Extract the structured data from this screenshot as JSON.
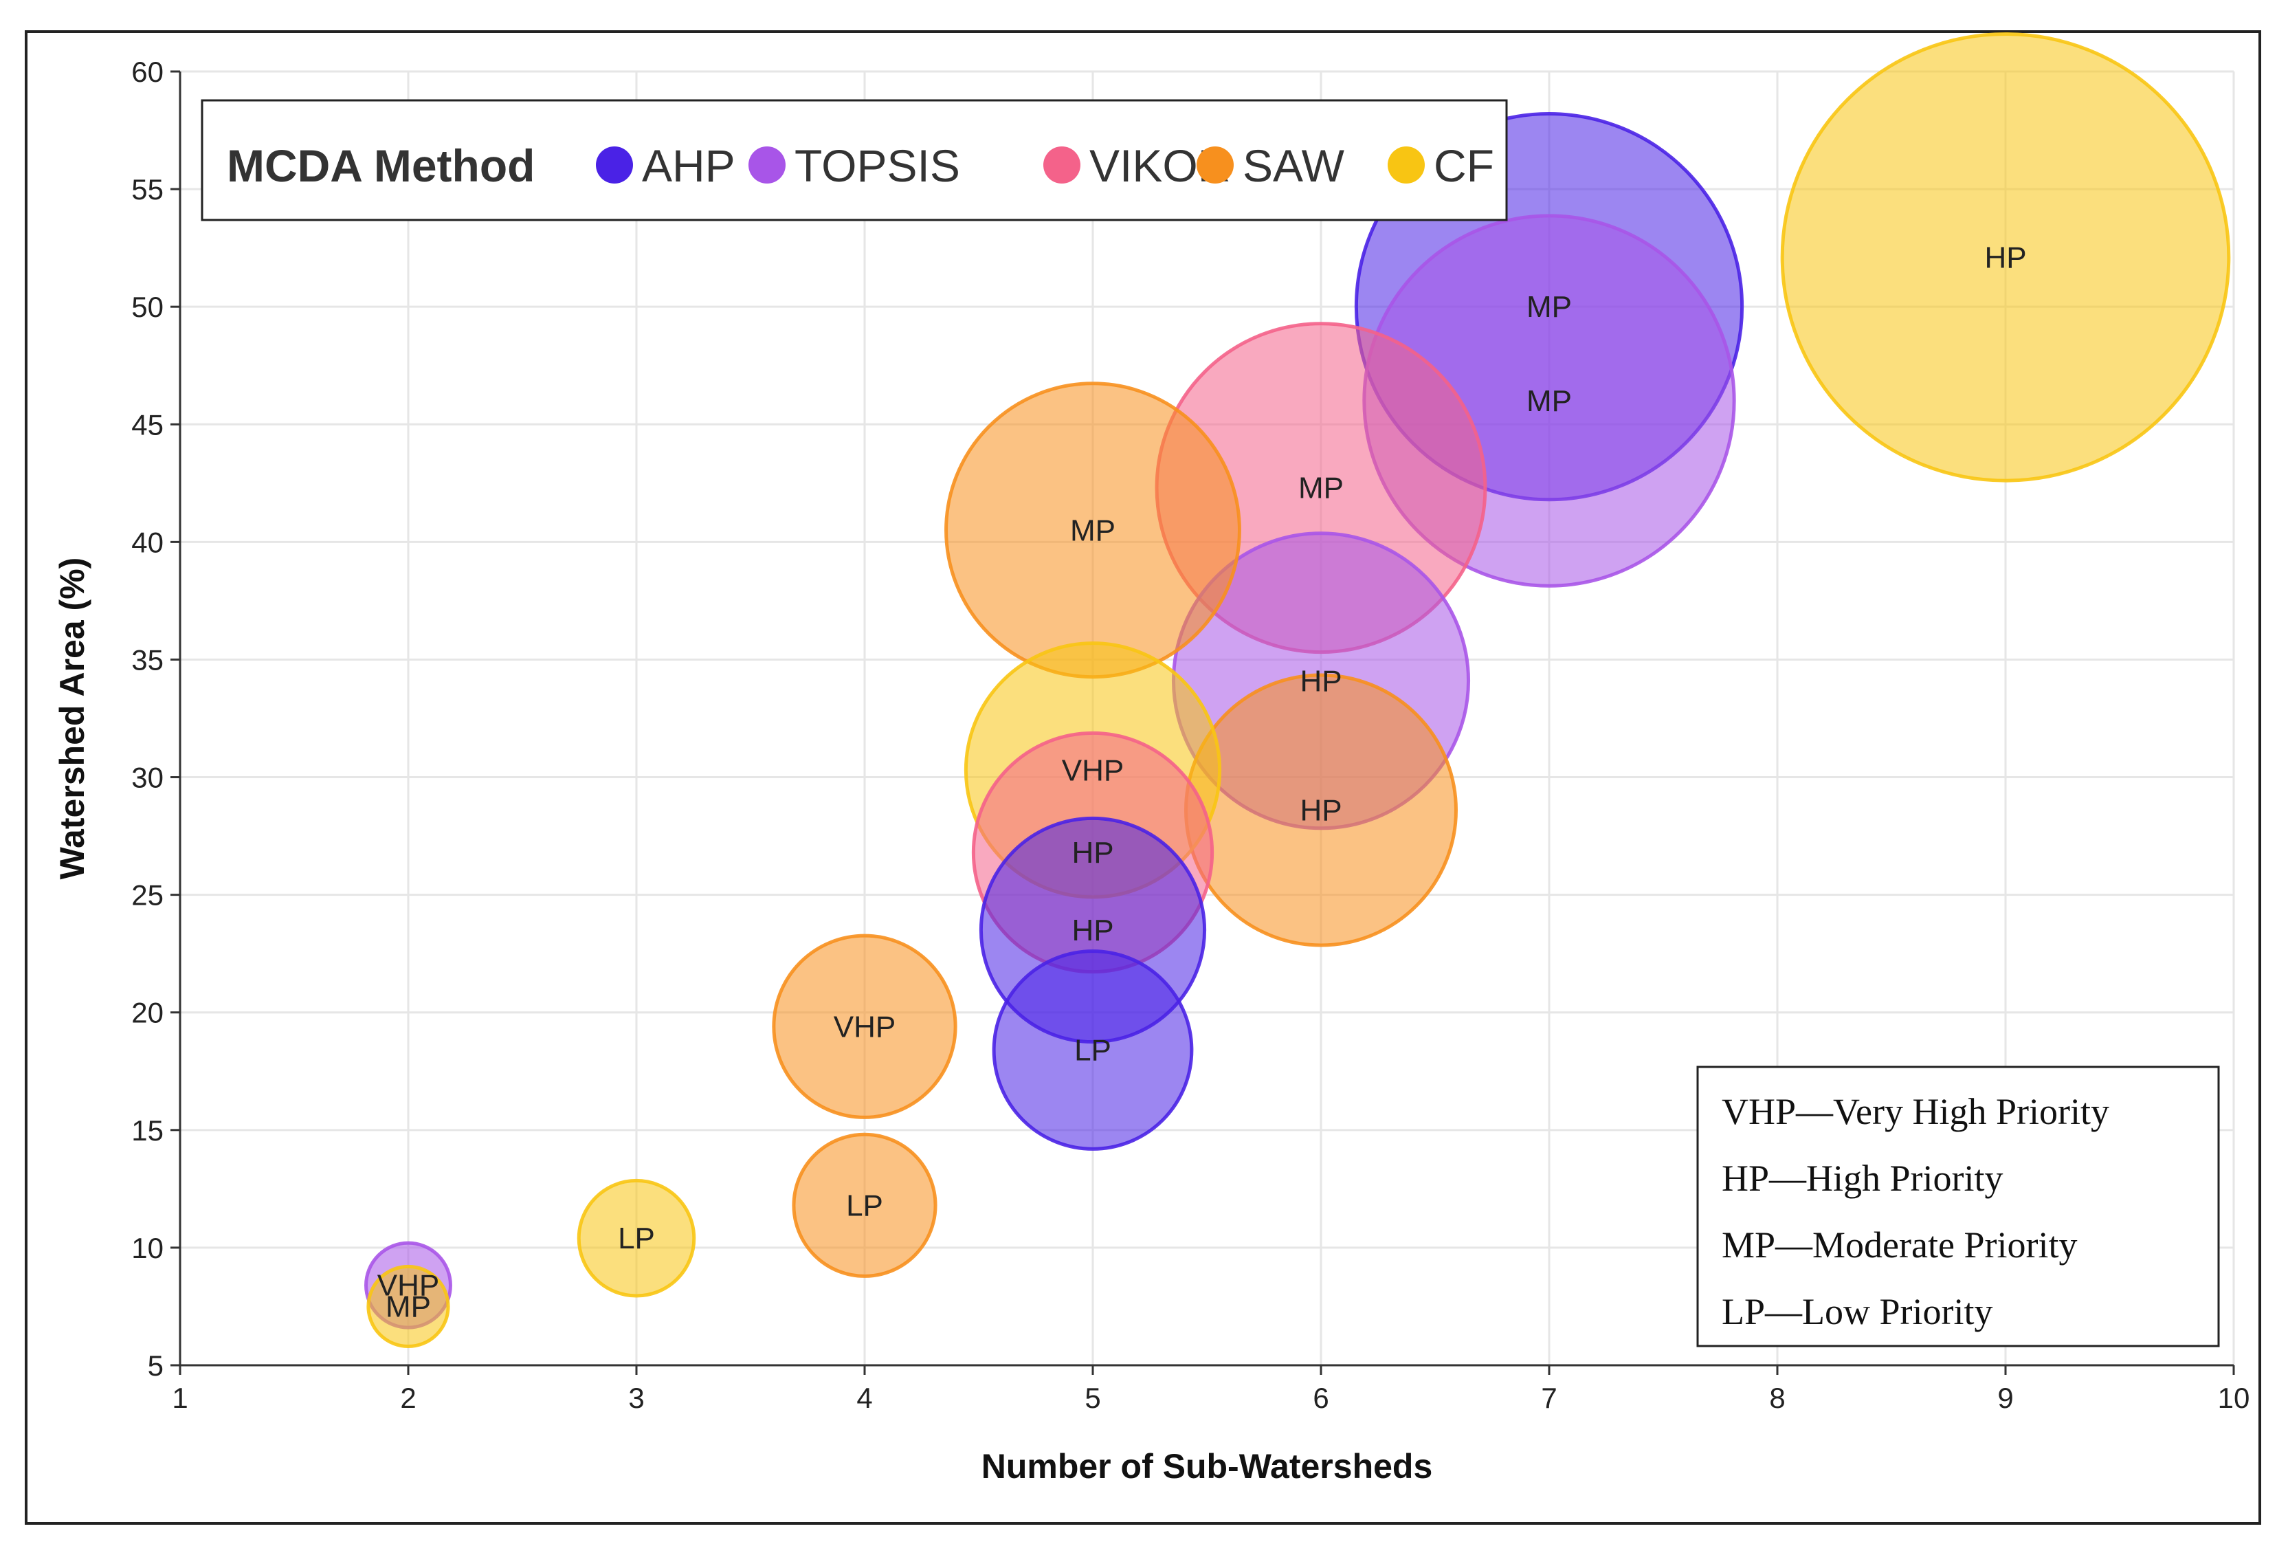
{
  "chart_data": {
    "type": "scatter",
    "subtype": "bubble",
    "title": "",
    "xlabel": "Number of Sub-Watersheds",
    "ylabel": "Watershed Area (%)",
    "xlim": [
      1,
      10
    ],
    "ylim": [
      5,
      60
    ],
    "xticks": [
      "1",
      "2",
      "3",
      "4",
      "5",
      "6",
      "7",
      "8",
      "9",
      "10"
    ],
    "yticks": [
      "5",
      "10",
      "15",
      "20",
      "25",
      "30",
      "35",
      "40",
      "45",
      "50",
      "55",
      "60"
    ],
    "grid": true,
    "legend": {
      "title": "MCDA Method",
      "placement": "top-left",
      "entries": [
        {
          "name": "AHP",
          "color": "#4a22e6"
        },
        {
          "name": "TOPSIS",
          "color": "#a855e8"
        },
        {
          "name": "VIKOR",
          "color": "#f4628a"
        },
        {
          "name": "SAW",
          "color": "#f7901e"
        },
        {
          "name": "CF",
          "color": "#f8c513"
        }
      ]
    },
    "priority_key": {
      "placement": "bottom-right",
      "lines": [
        "VHP—Very High Priority",
        "HP—High Priority",
        "MP—Moderate Priority",
        "LP—Low Priority"
      ]
    },
    "series": [
      {
        "name": "AHP",
        "color": "#4a22e6",
        "points": [
          {
            "x": 7,
            "y": 50.0,
            "label": "MP"
          },
          {
            "x": 5,
            "y": 23.5,
            "label": "HP"
          },
          {
            "x": 5,
            "y": 18.4,
            "label": "LP"
          }
        ]
      },
      {
        "name": "TOPSIS",
        "color": "#a855e8",
        "points": [
          {
            "x": 7,
            "y": 46.0,
            "label": "MP"
          },
          {
            "x": 6,
            "y": 34.1,
            "label": "HP"
          },
          {
            "x": 2,
            "y": 8.4,
            "label": "VHP"
          }
        ]
      },
      {
        "name": "VIKOR",
        "color": "#f4628a",
        "points": [
          {
            "x": 6,
            "y": 42.3,
            "label": "MP"
          },
          {
            "x": 5,
            "y": 26.8,
            "label": "HP"
          }
        ]
      },
      {
        "name": "SAW",
        "color": "#f7901e",
        "points": [
          {
            "x": 5,
            "y": 40.5,
            "label": "MP"
          },
          {
            "x": 6,
            "y": 28.6,
            "label": "HP"
          },
          {
            "x": 4,
            "y": 19.4,
            "label": "VHP"
          },
          {
            "x": 4,
            "y": 11.8,
            "label": "LP"
          }
        ]
      },
      {
        "name": "CF",
        "color": "#f8c513",
        "points": [
          {
            "x": 9,
            "y": 52.1,
            "label": "HP"
          },
          {
            "x": 5,
            "y": 30.3,
            "label": "VHP"
          },
          {
            "x": 3,
            "y": 10.4,
            "label": "LP"
          },
          {
            "x": 2,
            "y": 7.5,
            "label": "MP"
          }
        ]
      }
    ]
  }
}
